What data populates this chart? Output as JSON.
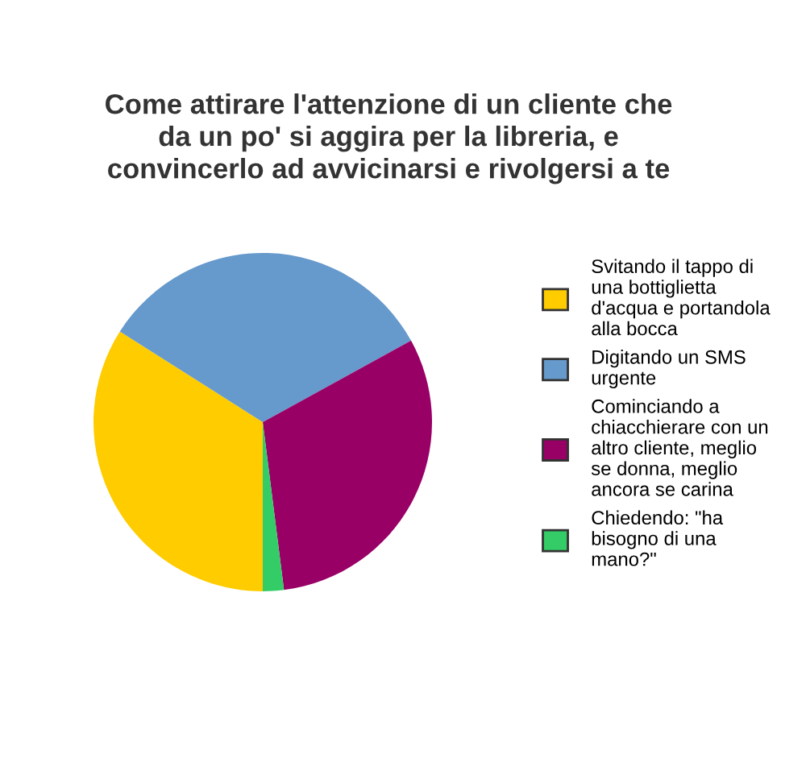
{
  "chart_data": {
    "type": "pie",
    "title": "Come attirare l'attenzione di un cliente che\nda un po' si aggira per la libreria, e\nconvincerlo ad avvicinarsi e rivolgersi a te",
    "categories": [
      "Svitando il tappo di\nuna bottiglietta\nd'acqua e portandola\nalla bocca",
      "Digitando un SMS\nurgente",
      "Cominciando a\nchiacchierare con un\naltro cliente, meglio\nse donna, meglio\nancora se carina",
      "Chiedendo: \"ha\nbisogno di una\nmano?\""
    ],
    "values": [
      34,
      33,
      31,
      2
    ],
    "colors": [
      "#ffcc00",
      "#6699cc",
      "#990066",
      "#33cc66"
    ],
    "legend": "right"
  }
}
